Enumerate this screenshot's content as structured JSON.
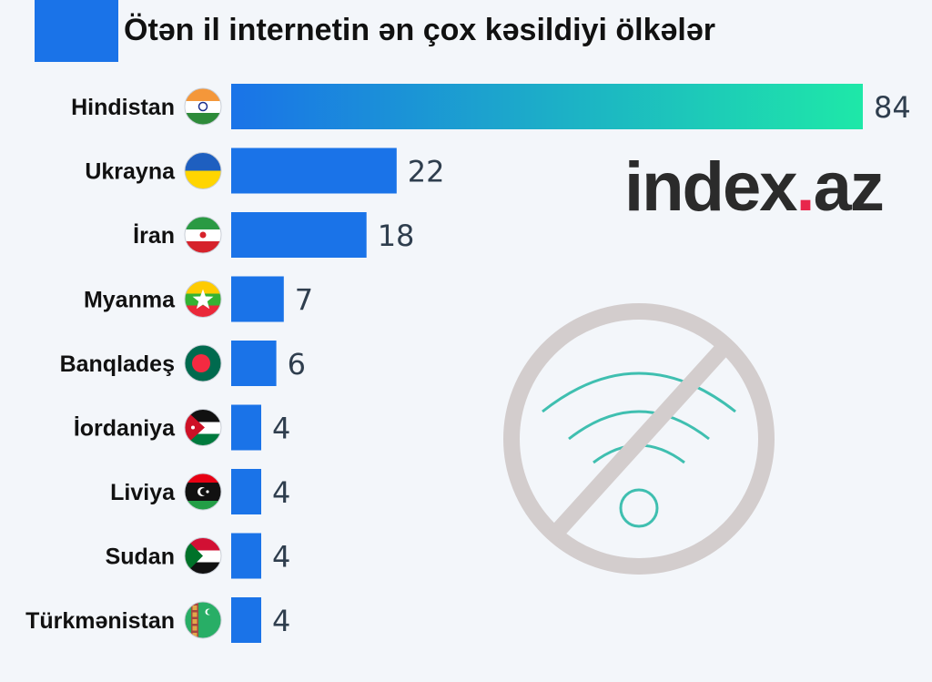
{
  "header": {
    "title": "Ötən il internetin ən çox kəsildiyi ölkələr",
    "accent_color": "#1a73e8"
  },
  "logo": {
    "text_main": "index",
    "text_dot": ".",
    "text_tail": "az"
  },
  "decor": {
    "icon": "wifi-off-icon"
  },
  "chart_data": {
    "type": "bar",
    "orientation": "horizontal",
    "title": "Ötən il internetin ən çox kəsildiyi ölkələr",
    "categories": [
      "Hindistan",
      "Ukrayna",
      "İran",
      "Myanma",
      "Banqladeş",
      "İordaniya",
      "Liviya",
      "Sudan",
      "Türkmənistan"
    ],
    "values": [
      84,
      22,
      18,
      7,
      6,
      4,
      4,
      4,
      4
    ],
    "flags": [
      "india-flag-icon",
      "ukraine-flag-icon",
      "iran-flag-icon",
      "myanmar-flag-icon",
      "bangladesh-flag-icon",
      "jordan-flag-icon",
      "libya-flag-icon",
      "sudan-flag-icon",
      "turkmenistan-flag-icon"
    ],
    "xlim": [
      0,
      84
    ],
    "grid": false,
    "bar_color": "#1a73e8",
    "highlight_gradient": [
      "#1a73e8",
      "#1ee8a8"
    ]
  }
}
